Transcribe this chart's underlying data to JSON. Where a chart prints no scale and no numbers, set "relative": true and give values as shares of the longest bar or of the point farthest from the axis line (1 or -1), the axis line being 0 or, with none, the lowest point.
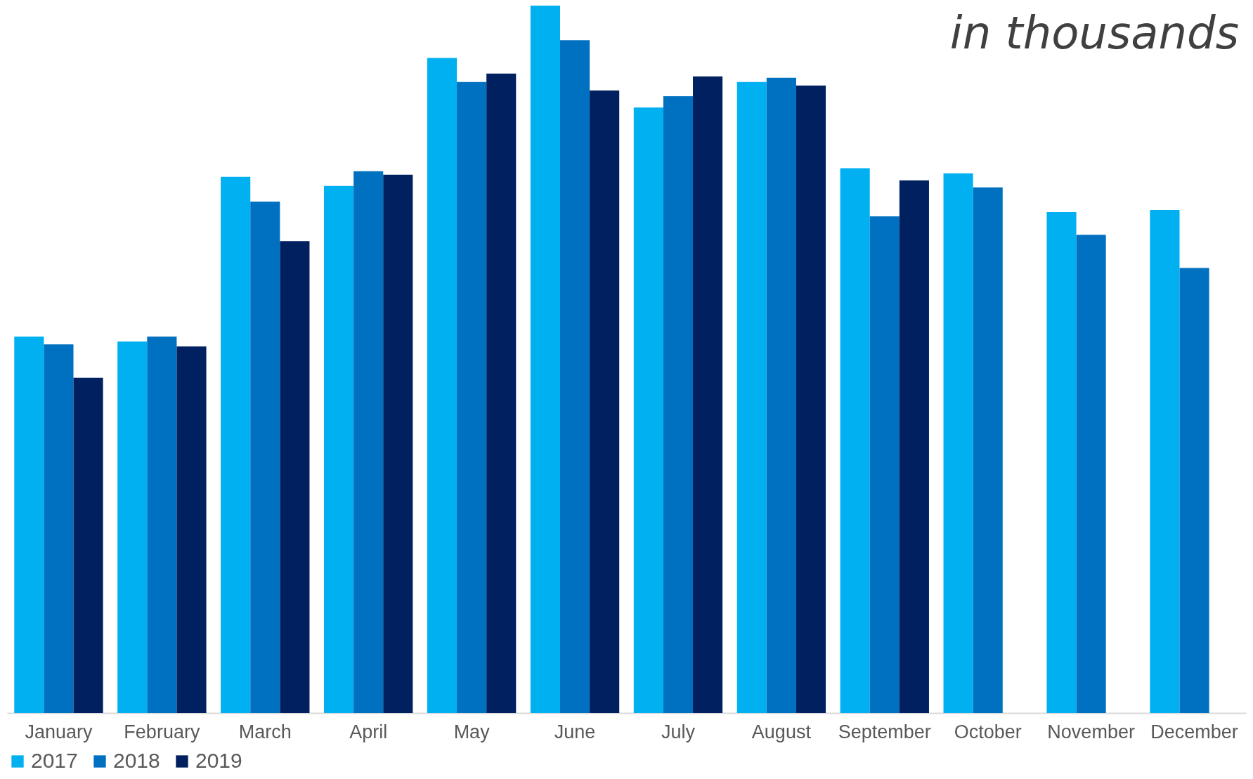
{
  "chart_data": {
    "type": "bar",
    "relative": true,
    "categories": [
      "January",
      "February",
      "March",
      "April",
      "May",
      "June",
      "July",
      "August",
      "September",
      "October",
      "November",
      "December"
    ],
    "series": [
      {
        "name": "2017",
        "color": "#00b0f0",
        "values": [
          0.532,
          0.525,
          0.758,
          0.745,
          0.926,
          1,
          0.856,
          0.892,
          0.77,
          0.763,
          0.708,
          0.711
        ]
      },
      {
        "name": "2018",
        "color": "#0070c0",
        "values": [
          0.521,
          0.532,
          0.723,
          0.766,
          0.892,
          0.951,
          0.872,
          0.898,
          0.702,
          0.743,
          0.676,
          0.629
        ]
      },
      {
        "name": "2019",
        "color": "#002060",
        "values": [
          0.474,
          0.518,
          0.667,
          0.761,
          0.904,
          0.88,
          0.9,
          0.887,
          0.753,
          null,
          null,
          null
        ]
      }
    ],
    "legend": "bottom",
    "grid": false,
    "annotations": [
      "in thousands"
    ]
  }
}
